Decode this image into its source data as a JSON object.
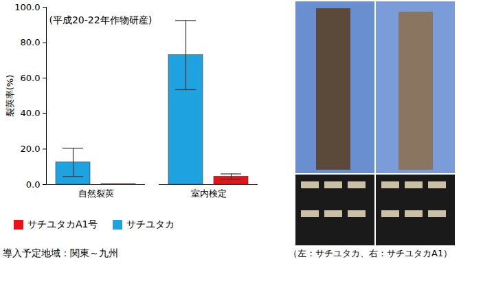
{
  "chart_data": {
    "type": "bar",
    "annotation": "(平成20-22年作物研産)",
    "y_label": "裂莢率(%)",
    "categories": [
      "自然裂莢",
      "室内検定"
    ],
    "series": [
      {
        "name": "サチユタカ",
        "color": "#1fa2e0",
        "values": [
          12.5,
          73.0
        ],
        "error": [
          8.0,
          19.5
        ]
      },
      {
        "name": "サチユタカA1号",
        "color": "#e8121a",
        "values": [
          0.3,
          4.5
        ],
        "error": [
          0,
          1.5
        ]
      }
    ],
    "ylim": [
      0,
      100
    ],
    "yticks": [
      {
        "value": 0,
        "label": "0.0"
      },
      {
        "value": 20,
        "label": "20.0"
      },
      {
        "value": 40,
        "label": "40.0"
      },
      {
        "value": 60,
        "label": "60.0"
      },
      {
        "value": 80,
        "label": "80.0"
      },
      {
        "value": 100,
        "label": "100.0"
      }
    ],
    "grid": false,
    "legend": "bottom",
    "footnote": "導入予定地域：関東～九州",
    "image_caption": "（左：サチユタカ、右：サチユタカA1）"
  }
}
